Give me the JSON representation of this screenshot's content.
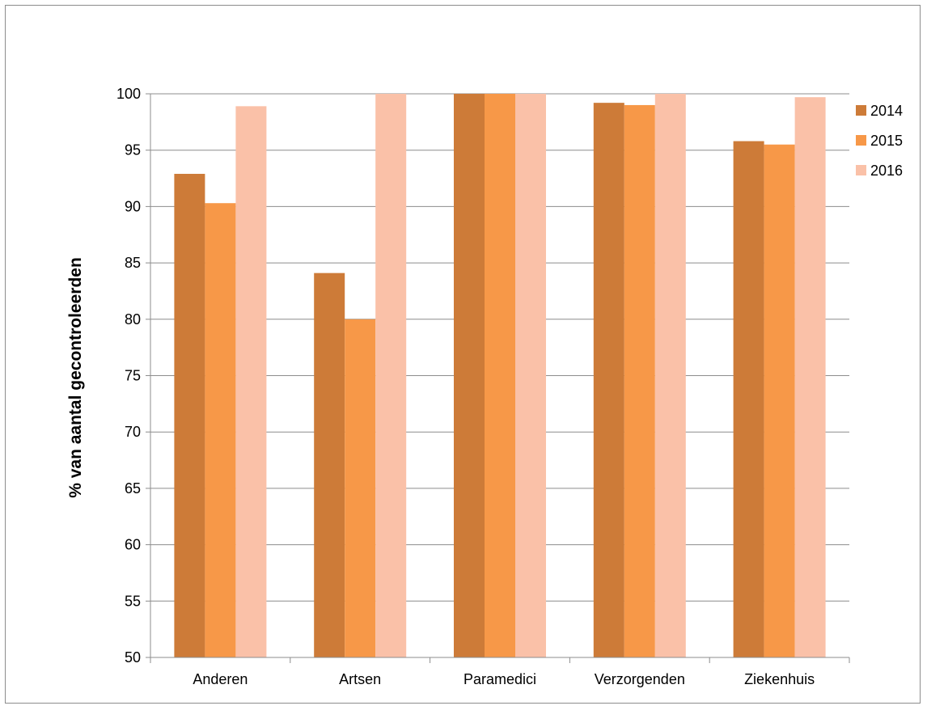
{
  "chart_data": {
    "type": "bar",
    "title": "",
    "xlabel": "",
    "ylabel": "% van aantal gecontroleerden",
    "ylim": [
      50,
      100
    ],
    "yticks": [
      50,
      55,
      60,
      65,
      70,
      75,
      80,
      85,
      90,
      95,
      100
    ],
    "grid": true,
    "legend_position": "top-right",
    "categories": [
      "Anderen",
      "Artsen",
      "Paramedici",
      "Verzorgenden",
      "Ziekenhuis"
    ],
    "series": [
      {
        "name": "2014",
        "color": "#cd7b38",
        "values": [
          92.9,
          84.1,
          100,
          99.2,
          95.8
        ]
      },
      {
        "name": "2015",
        "color": "#f79848",
        "values": [
          90.3,
          80.0,
          100,
          99.0,
          95.5
        ]
      },
      {
        "name": "2016",
        "color": "#fac1a8",
        "values": [
          98.9,
          100,
          100,
          100,
          99.7
        ]
      }
    ]
  }
}
